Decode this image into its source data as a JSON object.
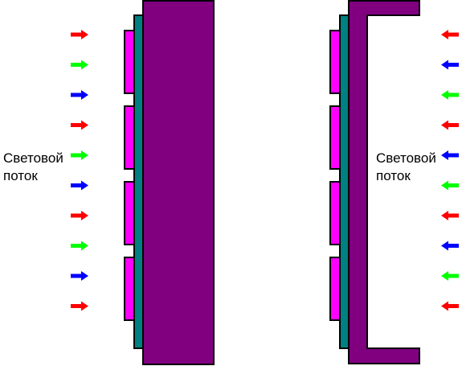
{
  "colors": {
    "substrate": "#800080",
    "layer": "#008080",
    "cell": "#ff00ff",
    "red": "#ff0000",
    "green": "#00ff00",
    "blue": "#0000ff",
    "outline": "#000000"
  },
  "left_panel": {
    "label_line1": "Световой",
    "label_line2": "поток",
    "arrow_direction": "right",
    "arrow_colors": [
      "red",
      "green",
      "blue",
      "red",
      "green",
      "blue",
      "red",
      "green",
      "blue",
      "red"
    ]
  },
  "right_panel": {
    "label_line1": "Световой",
    "label_line2": "поток",
    "arrow_direction": "left",
    "arrow_colors": [
      "red",
      "blue",
      "green",
      "red",
      "blue",
      "green",
      "red",
      "blue",
      "green",
      "red"
    ]
  }
}
